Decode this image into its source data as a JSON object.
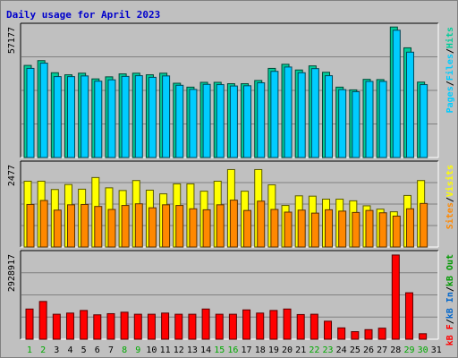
{
  "title": "Daily usage for April 2023",
  "colors": {
    "hits": "#00cc99",
    "files": "#00ccff",
    "pages": "#00ccff",
    "visits": "#ffff00",
    "sites": "#ff8800",
    "kbin": "#0066cc",
    "kbout": "#009900",
    "kbf": "#ff0000",
    "title": "#0000cc",
    "day_weekday": "#000000",
    "day_weekend": "#00aa00"
  },
  "chart_data": [
    {
      "type": "bar",
      "panel": "hits-files-pages",
      "x": [
        1,
        2,
        3,
        4,
        5,
        6,
        7,
        8,
        9,
        10,
        11,
        12,
        13,
        14,
        15,
        16,
        17,
        18,
        19,
        20,
        21,
        22,
        23,
        24,
        25,
        26,
        27,
        28,
        29,
        30,
        31
      ],
      "ylim": [
        0,
        57177
      ],
      "ytick": "57177",
      "legend_labels": [
        "Pages",
        "Files",
        "Hits"
      ],
      "legend_separator": "/",
      "series": [
        {
          "name": "Hits",
          "values": [
            40300,
            42400,
            37100,
            36200,
            36900,
            34400,
            35300,
            36600,
            36900,
            36200,
            36900,
            32500,
            30800,
            32900,
            32900,
            32300,
            32300,
            33700,
            39000,
            40800,
            38300,
            40100,
            37300,
            30800,
            29600,
            34200,
            34100,
            57100,
            48000,
            33000,
            0
          ]
        },
        {
          "name": "Files",
          "values": [
            39000,
            41300,
            35400,
            35400,
            35700,
            33400,
            34000,
            35500,
            35800,
            35100,
            35700,
            31600,
            29800,
            32000,
            31900,
            31300,
            31400,
            32700,
            37700,
            39600,
            37100,
            38900,
            35800,
            29700,
            28800,
            33300,
            33300,
            55700,
            46100,
            31900,
            0
          ]
        },
        {
          "name": "Pages",
          "values": [
            39000,
            41300,
            35400,
            35400,
            35700,
            33400,
            34000,
            35500,
            35800,
            35100,
            35700,
            31600,
            29800,
            32000,
            31900,
            31300,
            31400,
            32700,
            37700,
            39600,
            37100,
            38900,
            35800,
            29700,
            28800,
            33300,
            33300,
            55700,
            46100,
            31900,
            0
          ]
        }
      ]
    },
    {
      "type": "bar",
      "panel": "visits-sites",
      "x": [
        1,
        2,
        3,
        4,
        5,
        6,
        7,
        8,
        9,
        10,
        11,
        12,
        13,
        14,
        15,
        16,
        17,
        18,
        19,
        20,
        21,
        22,
        23,
        24,
        25,
        26,
        27,
        28,
        29,
        30,
        31
      ],
      "ylim": [
        0,
        2477
      ],
      "ytick": "2477",
      "legend_labels": [
        "Sites",
        "Visits"
      ],
      "legend_separator": "/",
      "series": [
        {
          "name": "Visits",
          "values": [
            1980,
            1980,
            1730,
            1880,
            1740,
            2090,
            1780,
            1700,
            2000,
            1710,
            1600,
            1900,
            1900,
            1680,
            1980,
            2330,
            1680,
            2330,
            1870,
            1250,
            1540,
            1530,
            1440,
            1440,
            1390,
            1240,
            1140,
            1060,
            1550,
            2000,
            0
          ]
        },
        {
          "name": "Sites",
          "values": [
            1280,
            1400,
            1110,
            1270,
            1280,
            1220,
            1130,
            1250,
            1300,
            1180,
            1270,
            1250,
            1150,
            1120,
            1270,
            1410,
            1100,
            1380,
            1130,
            1050,
            1110,
            1020,
            1120,
            1080,
            1040,
            1100,
            1030,
            930,
            1150,
            1310,
            0
          ]
        }
      ]
    },
    {
      "type": "bar",
      "panel": "kbf-kbin-kbout",
      "x": [
        1,
        2,
        3,
        4,
        5,
        6,
        7,
        8,
        9,
        10,
        11,
        12,
        13,
        14,
        15,
        16,
        17,
        18,
        19,
        20,
        21,
        22,
        23,
        24,
        25,
        26,
        27,
        28,
        29,
        30,
        31
      ],
      "ylim": [
        0,
        2928917
      ],
      "ytick": "2928917",
      "legend_labels": [
        "kB F",
        "kB In",
        "kB Out"
      ],
      "legend_separator": "/",
      "series": [
        {
          "name": "kB F",
          "values": [
            1040000,
            1300000,
            860000,
            900000,
            990000,
            840000,
            880000,
            930000,
            860000,
            860000,
            900000,
            860000,
            860000,
            1040000,
            860000,
            860000,
            1010000,
            900000,
            990000,
            1040000,
            850000,
            860000,
            620000,
            390000,
            260000,
            330000,
            380000,
            2900000,
            1600000,
            190000,
            0
          ]
        }
      ]
    }
  ],
  "x_labels": [
    "1",
    "2",
    "3",
    "4",
    "5",
    "6",
    "7",
    "8",
    "9",
    "10",
    "11",
    "12",
    "13",
    "14",
    "15",
    "16",
    "17",
    "18",
    "19",
    "20",
    "21",
    "22",
    "23",
    "24",
    "25",
    "26",
    "27",
    "28",
    "29",
    "30",
    "31"
  ],
  "weekend_days": [
    1,
    2,
    8,
    9,
    15,
    16,
    22,
    23,
    29,
    30
  ]
}
